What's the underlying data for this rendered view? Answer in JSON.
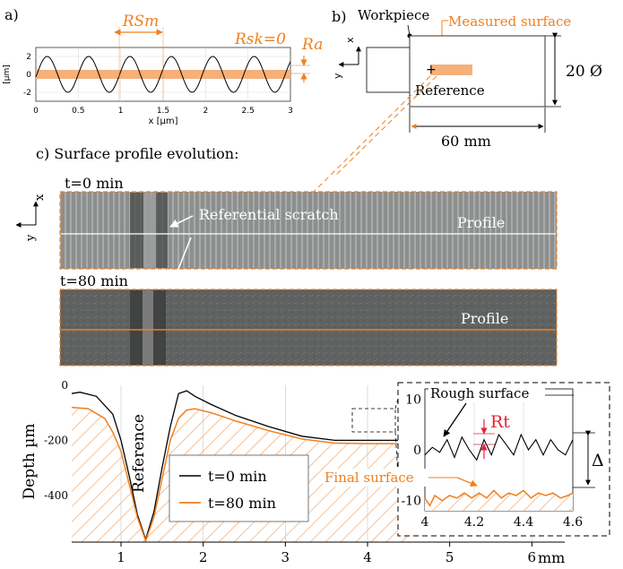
{
  "panel_a": {
    "label": "a)",
    "rsm_label": "RSm",
    "rsk_label": "Rsk=0",
    "ra_label": "Ra",
    "ylabel": "[µm]",
    "xlabel": "x [µm]",
    "yticks": [
      "2",
      "0",
      "-2"
    ],
    "xticks": [
      "0",
      "0.5",
      "1",
      "1.5",
      "2",
      "2.5",
      "3"
    ]
  },
  "panel_b": {
    "label": "b)",
    "workpiece": "Workpiece",
    "measured_surface": "Measured surface",
    "reference": "Reference",
    "diameter": "20 Ø",
    "length": "60 mm",
    "axis_x": "x",
    "axis_y": "y"
  },
  "panel_c": {
    "title": "c) Surface profile evolution:",
    "axis_x": "x",
    "axis_y": "y",
    "t0_label": "t=0 min",
    "t80_label": "t=80 min",
    "scratch_label": "Referential scratch",
    "profile_label": "Profile",
    "profile_label_2": "Profile"
  },
  "chart_data": [
    {
      "type": "line",
      "name": "panel-a-sine",
      "x": [
        0,
        0.125,
        0.25,
        0.375,
        0.5,
        0.625,
        0.75,
        0.875,
        1.0,
        1.125,
        1.25,
        1.375,
        1.5,
        1.625,
        1.75,
        1.875,
        2.0,
        2.125,
        2.25,
        2.375,
        2.5,
        2.625,
        2.75,
        2.875,
        3.0
      ],
      "y": [
        -0.25,
        1.9,
        -0.2,
        -1.95,
        0.25,
        1.95,
        -0.3,
        -1.9,
        0.2,
        1.95,
        -0.25,
        -1.95,
        0.3,
        1.9,
        -0.2,
        -1.95,
        0.25,
        1.95,
        -0.3,
        -1.9,
        0.2,
        1.95,
        -0.25,
        -1.95,
        1.2
      ],
      "xlabel": "x [µm]",
      "ylabel": "[µm]",
      "xlim": [
        0,
        3
      ],
      "ylim": [
        -3,
        3
      ],
      "band": [
        -0.5,
        0.5
      ],
      "grid": true
    },
    {
      "type": "line",
      "name": "depth-profile",
      "xlabel": "",
      "ylabel": "Depth µm",
      "xunit": "mm",
      "xlim": [
        0.4,
        6.4
      ],
      "ylim": [
        -570,
        0
      ],
      "xticks": [
        "1",
        "2",
        "3",
        "4",
        "5",
        "6"
      ],
      "yticks": [
        "0",
        "-200",
        "-400"
      ],
      "annotation": "Reference",
      "series": [
        {
          "name": "t=0 min",
          "x": [
            0.4,
            0.5,
            0.7,
            0.9,
            1.0,
            1.1,
            1.2,
            1.3,
            1.4,
            1.5,
            1.6,
            1.7,
            1.8,
            1.9,
            2.1,
            2.4,
            2.8,
            3.2,
            3.6,
            4.0,
            4.5
          ],
          "y": [
            -30,
            -25,
            -40,
            -105,
            -200,
            -330,
            -470,
            -560,
            -460,
            -300,
            -150,
            -30,
            -20,
            -40,
            -70,
            -110,
            -150,
            -185,
            -200,
            -200,
            -200
          ]
        },
        {
          "name": "t=80 min",
          "x": [
            0.4,
            0.6,
            0.8,
            0.9,
            1.0,
            1.1,
            1.2,
            1.3,
            1.4,
            1.5,
            1.6,
            1.7,
            1.8,
            1.9,
            2.1,
            2.4,
            2.8,
            3.2,
            3.6,
            4.0,
            4.5
          ],
          "y": [
            -80,
            -85,
            -120,
            -170,
            -240,
            -360,
            -480,
            -565,
            -480,
            -340,
            -200,
            -120,
            -90,
            -85,
            -100,
            -130,
            -165,
            -195,
            -210,
            -212,
            -212
          ]
        }
      ]
    },
    {
      "type": "line",
      "name": "inset-zoom",
      "xlim": [
        4.0,
        4.6
      ],
      "ylim": [
        -12,
        12
      ],
      "xticks": [
        "4",
        "4.2",
        "4.4",
        "4.6"
      ],
      "yticks": [
        "10",
        "0",
        "-10"
      ],
      "labels": {
        "rough": "Rough surface",
        "rt": "Rt",
        "final": "Final surface",
        "delta": "Δ"
      },
      "series": [
        {
          "name": "Rough surface",
          "x": [
            4.0,
            4.03,
            4.06,
            4.09,
            4.12,
            4.15,
            4.18,
            4.21,
            4.24,
            4.27,
            4.3,
            4.33,
            4.36,
            4.39,
            4.42,
            4.45,
            4.48,
            4.51,
            4.54,
            4.57,
            4.6
          ],
          "y": [
            -1,
            0.5,
            -0.5,
            2,
            -1.5,
            2.5,
            0,
            -2,
            2,
            -1,
            3,
            1,
            -1,
            3,
            0,
            2,
            -1,
            2,
            0,
            -1,
            2
          ]
        },
        {
          "name": "Final surface",
          "x": [
            4.0,
            4.02,
            4.04,
            4.07,
            4.1,
            4.13,
            4.16,
            4.19,
            4.22,
            4.25,
            4.28,
            4.31,
            4.34,
            4.37,
            4.4,
            4.43,
            4.46,
            4.49,
            4.52,
            4.55,
            4.58,
            4.6
          ],
          "y": [
            -9.5,
            -11,
            -9,
            -10,
            -9,
            -9.5,
            -8.5,
            -9.5,
            -8.5,
            -9.5,
            -8,
            -9.5,
            -8.5,
            -9,
            -8,
            -9.5,
            -8.5,
            -9,
            -8.5,
            -9.5,
            -9,
            -8.5
          ]
        }
      ]
    }
  ]
}
